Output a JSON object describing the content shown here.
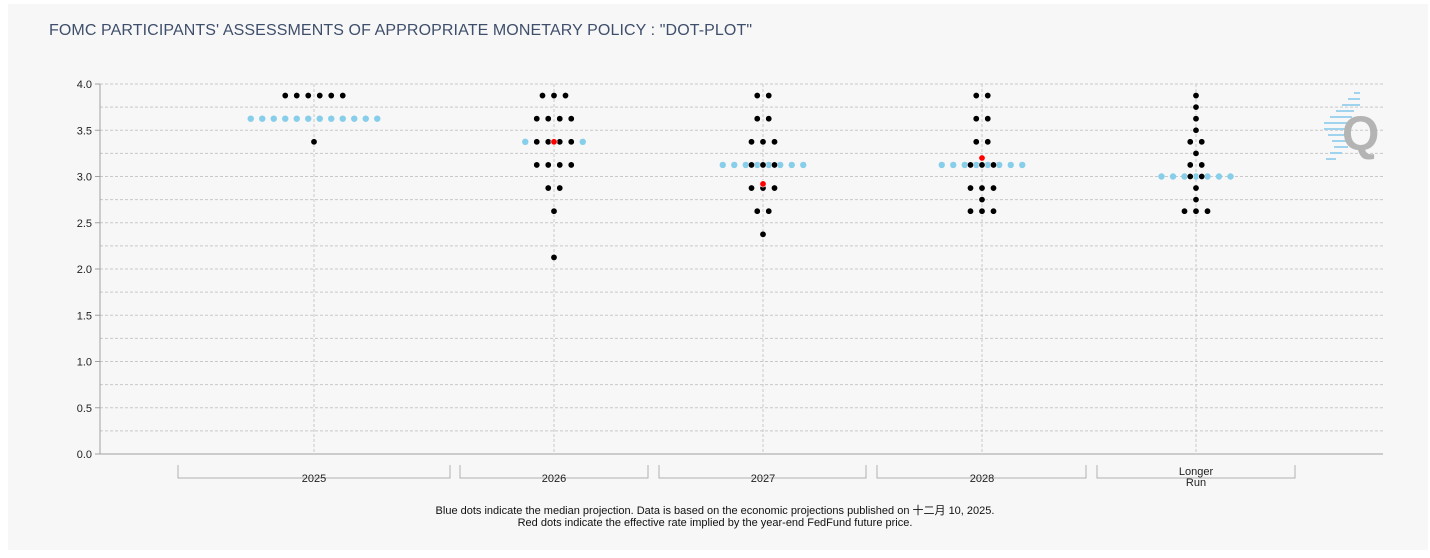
{
  "chart_data": {
    "type": "scatter",
    "title": "FOMC PARTICIPANTS' ASSESSMENTS OF APPROPRIATE MONETARY POLICY : \"DOT-PLOT\"",
    "categories": [
      "2025",
      "2026",
      "2027",
      "2028",
      "Longer Run"
    ],
    "category_labels": [
      [
        "2025"
      ],
      [
        "2026"
      ],
      [
        "2027"
      ],
      [
        "2028"
      ],
      [
        "Longer",
        "Run"
      ]
    ],
    "ylim": [
      0,
      4.0
    ],
    "yticks": [
      0.0,
      0.5,
      1.0,
      1.5,
      2.0,
      2.5,
      3.0,
      3.5,
      4.0
    ],
    "ytick_labels": [
      "0.0",
      "0.5",
      "1.0",
      "1.5",
      "2.0",
      "2.5",
      "3.0",
      "3.5",
      "4.0"
    ],
    "grid": true,
    "participant_dots": [
      {
        "category": "2025",
        "rows": [
          {
            "y": 3.875,
            "count": 6
          },
          {
            "y": 3.375,
            "count": 1
          }
        ]
      },
      {
        "category": "2026",
        "rows": [
          {
            "y": 3.875,
            "count": 3
          },
          {
            "y": 3.625,
            "count": 4
          },
          {
            "y": 3.375,
            "count": 4
          },
          {
            "y": 3.125,
            "count": 4
          },
          {
            "y": 2.875,
            "count": 2
          },
          {
            "y": 2.625,
            "count": 1
          },
          {
            "y": 2.125,
            "count": 1
          }
        ]
      },
      {
        "category": "2027",
        "rows": [
          {
            "y": 3.875,
            "count": 2
          },
          {
            "y": 3.625,
            "count": 2
          },
          {
            "y": 3.375,
            "count": 3
          },
          {
            "y": 3.125,
            "count": 3
          },
          {
            "y": 2.875,
            "count": 3
          },
          {
            "y": 2.625,
            "count": 2
          },
          {
            "y": 2.375,
            "count": 1
          }
        ]
      },
      {
        "category": "2028",
        "rows": [
          {
            "y": 3.875,
            "count": 2
          },
          {
            "y": 3.625,
            "count": 2
          },
          {
            "y": 3.375,
            "count": 2
          },
          {
            "y": 3.125,
            "count": 3
          },
          {
            "y": 2.875,
            "count": 3
          },
          {
            "y": 2.75,
            "count": 1
          },
          {
            "y": 2.625,
            "count": 3
          }
        ]
      },
      {
        "category": "Longer Run",
        "rows": [
          {
            "y": 3.875,
            "count": 1
          },
          {
            "y": 3.75,
            "count": 1
          },
          {
            "y": 3.625,
            "count": 1
          },
          {
            "y": 3.5,
            "count": 1
          },
          {
            "y": 3.375,
            "count": 2
          },
          {
            "y": 3.25,
            "count": 1
          },
          {
            "y": 3.125,
            "count": 2
          },
          {
            "y": 3.0,
            "count": 2
          },
          {
            "y": 2.875,
            "count": 1
          },
          {
            "y": 2.75,
            "count": 1
          },
          {
            "y": 2.625,
            "count": 3
          }
        ]
      }
    ],
    "median_dots": [
      {
        "category": "2025",
        "y": 3.625,
        "count": 12
      },
      {
        "category": "2026",
        "y": 3.375,
        "count": 6
      },
      {
        "category": "2027",
        "y": 3.125,
        "count": 8
      },
      {
        "category": "2028",
        "y": 3.125,
        "count": 8
      },
      {
        "category": "Longer Run",
        "y": 3.0,
        "count": 7
      }
    ],
    "implied_rate_dots": [
      {
        "category": "2026",
        "y": 3.375
      },
      {
        "category": "2027",
        "y": 2.92
      },
      {
        "category": "2028",
        "y": 3.2
      }
    ],
    "colors": {
      "participant": "#000000",
      "median": "#87ceeb",
      "implied_rate": "#ff0000",
      "grid": "#c8c8c8",
      "title": "#3f4f6b",
      "background": "#f7f7f7"
    }
  },
  "footer": {
    "line1": "Blue dots indicate the median projection. Data is based on the economic projections published on 十二月 10, 2025.",
    "line2": "Red dots indicate the effective rate implied by the year-end FedFund future price."
  },
  "logo": {
    "icon": "q-logo-icon",
    "letter": "Q"
  }
}
